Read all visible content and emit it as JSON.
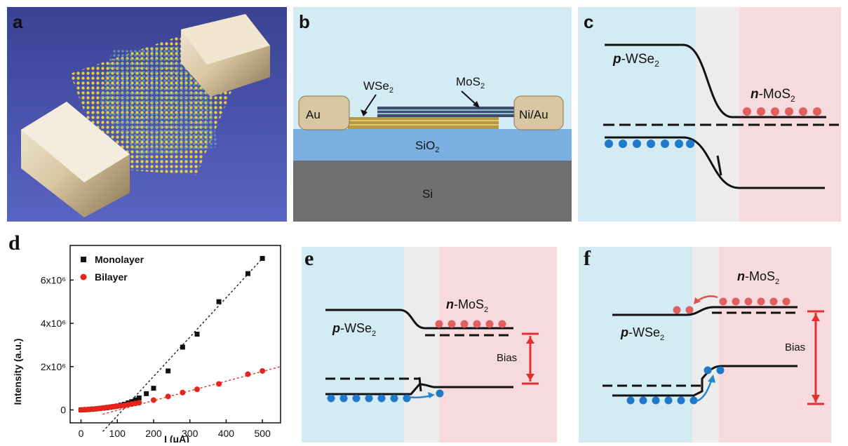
{
  "panels": {
    "a": {
      "label": "a"
    },
    "b": {
      "label": "b",
      "au": "Au",
      "niau": "Ni/Au",
      "wse2": "WSe",
      "wse2_sub": "2",
      "mos2": "MoS",
      "mos2_sub": "2",
      "sio2": "SiO",
      "sio2_sub": "2",
      "si": "Si"
    },
    "c": {
      "label": "c",
      "p_italic": "p",
      "p_rest": "-WSe",
      "p_sub": "2",
      "n_italic": "n",
      "n_rest": "-MoS",
      "n_sub": "2"
    },
    "d": {
      "label": "d"
    },
    "e": {
      "label": "e",
      "p_italic": "p",
      "p_rest": "-WSe",
      "p_sub": "2",
      "n_italic": "n",
      "n_rest": "-MoS",
      "n_sub": "2",
      "bias": "Bias"
    },
    "f": {
      "label": "f",
      "p_italic": "p",
      "p_rest": "-WSe",
      "p_sub": "2",
      "n_italic": "n",
      "n_rest": "-MoS",
      "n_sub": "2",
      "bias": "Bias"
    }
  },
  "colors": {
    "blue_region": "#d3ebf3",
    "gray_region": "#ececec",
    "pink_region": "#f7dadd",
    "electron": "#e06060",
    "hole": "#1f78c8",
    "arrow_red": "#e03030",
    "arrow_blue": "#2a86cc",
    "sio2": "#7ab1e2",
    "si": "#707070",
    "device_bg": "#4650a8"
  },
  "chart_data": {
    "type": "scatter",
    "xlabel": "I (μA)",
    "ylabel": "Intensity (a.u.)",
    "xlim": [
      -30,
      550
    ],
    "ylim": [
      -600000,
      7600000
    ],
    "x_ticks": [
      0,
      100,
      200,
      300,
      400,
      500
    ],
    "y_ticks": [
      0,
      2000000,
      4000000,
      6000000
    ],
    "y_tick_labels": [
      "0",
      "2x10⁶",
      "4x10⁶",
      "6x10⁶"
    ],
    "legend_position": "top-left",
    "series": [
      {
        "name": "Monolayer",
        "color": "#111111",
        "marker": "square",
        "x": [
          0,
          10,
          20,
          30,
          40,
          50,
          60,
          70,
          80,
          90,
          100,
          110,
          120,
          130,
          140,
          150,
          160,
          180,
          200,
          240,
          280,
          320,
          380,
          460,
          500
        ],
        "y": [
          0,
          5000,
          15000,
          30000,
          45000,
          60000,
          80000,
          100000,
          120000,
          150000,
          180000,
          220000,
          260000,
          320000,
          380000,
          460000,
          550000,
          750000,
          1000000,
          1800000,
          2900000,
          3500000,
          5000000,
          6300000,
          7000000
        ],
        "fit": {
          "x": [
            60,
            500
          ],
          "y": [
            -1000000,
            7000000
          ]
        }
      },
      {
        "name": "Bilayer",
        "color": "#e8231c",
        "marker": "circle",
        "x": [
          0,
          10,
          20,
          30,
          40,
          50,
          60,
          70,
          80,
          90,
          100,
          110,
          120,
          130,
          140,
          150,
          160,
          200,
          240,
          280,
          320,
          380,
          460,
          500
        ],
        "y": [
          0,
          10000,
          20000,
          35000,
          50000,
          70000,
          90000,
          110000,
          130000,
          150000,
          170000,
          190000,
          210000,
          240000,
          270000,
          300000,
          330000,
          450000,
          620000,
          800000,
          950000,
          1200000,
          1650000,
          1800000
        ],
        "fit": {
          "x": [
            60,
            550
          ],
          "y": [
            -200000,
            2000000
          ]
        }
      }
    ]
  }
}
